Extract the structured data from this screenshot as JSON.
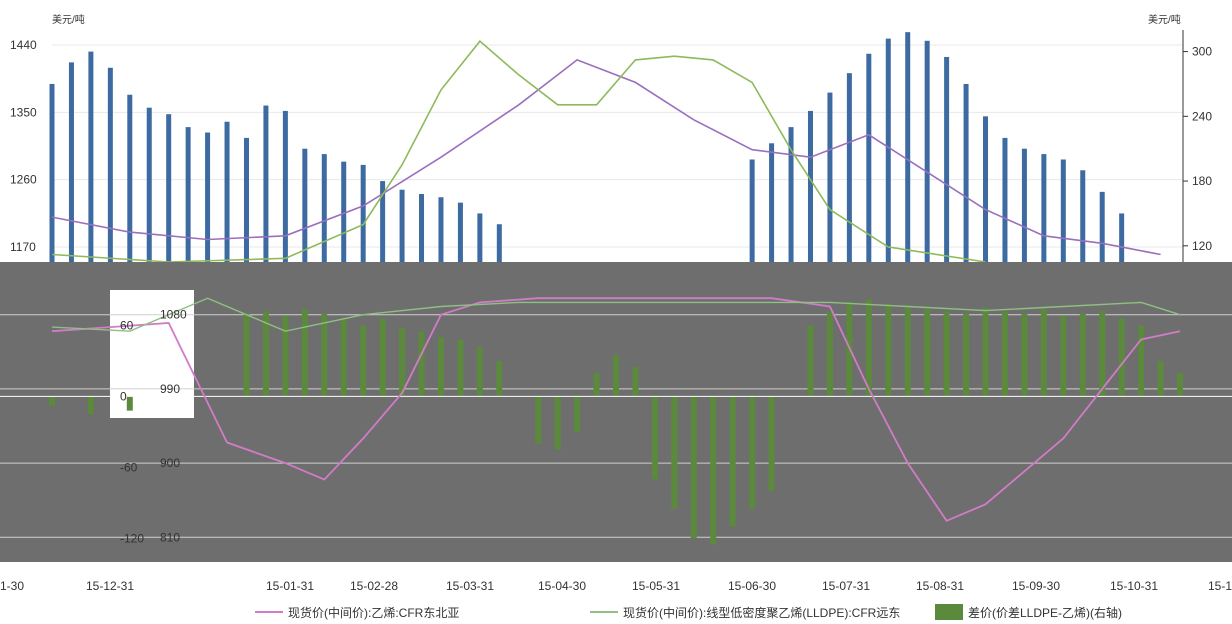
{
  "chart_data": [
    {
      "type": "bar+line",
      "panel": "top",
      "left_unit": "美元/吨",
      "right_unit": "美元/吨",
      "left_ticks": [
        "1440",
        "1350",
        "1260",
        "1170"
      ],
      "right_ticks": [
        "300",
        "240",
        "180",
        "120"
      ],
      "left_ylim": [
        1150,
        1460
      ],
      "right_ylim": [
        105,
        320
      ],
      "colors": {
        "bar": "#3d6aa0",
        "line_a": "#9a6fbf",
        "line_b": "#8dba5a"
      },
      "bars": [
        {
          "x": 0,
          "v": 270
        },
        {
          "x": 1,
          "v": 290
        },
        {
          "x": 2,
          "v": 300
        },
        {
          "x": 3,
          "v": 285
        },
        {
          "x": 4,
          "v": 260
        },
        {
          "x": 5,
          "v": 248
        },
        {
          "x": 6,
          "v": 242
        },
        {
          "x": 7,
          "v": 230
        },
        {
          "x": 8,
          "v": 225
        },
        {
          "x": 9,
          "v": 235
        },
        {
          "x": 10,
          "v": 220
        },
        {
          "x": 11,
          "v": 250
        },
        {
          "x": 12,
          "v": 245
        },
        {
          "x": 13,
          "v": 210
        },
        {
          "x": 14,
          "v": 205
        },
        {
          "x": 15,
          "v": 198
        },
        {
          "x": 16,
          "v": 195
        },
        {
          "x": 17,
          "v": 180
        },
        {
          "x": 18,
          "v": 172
        },
        {
          "x": 19,
          "v": 168
        },
        {
          "x": 20,
          "v": 165
        },
        {
          "x": 21,
          "v": 160
        },
        {
          "x": 22,
          "v": 150
        },
        {
          "x": 23,
          "v": 140
        },
        {
          "x": 36,
          "v": 200
        },
        {
          "x": 37,
          "v": 215
        },
        {
          "x": 38,
          "v": 230
        },
        {
          "x": 39,
          "v": 245
        },
        {
          "x": 40,
          "v": 262
        },
        {
          "x": 41,
          "v": 280
        },
        {
          "x": 42,
          "v": 298
        },
        {
          "x": 43,
          "v": 312
        },
        {
          "x": 44,
          "v": 318
        },
        {
          "x": 45,
          "v": 310
        },
        {
          "x": 46,
          "v": 295
        },
        {
          "x": 47,
          "v": 270
        },
        {
          "x": 48,
          "v": 240
        },
        {
          "x": 49,
          "v": 220
        },
        {
          "x": 50,
          "v": 210
        },
        {
          "x": 51,
          "v": 205
        },
        {
          "x": 52,
          "v": 200
        },
        {
          "x": 53,
          "v": 190
        },
        {
          "x": 54,
          "v": 170
        },
        {
          "x": 55,
          "v": 150
        }
      ],
      "line_a": [
        {
          "x": 0,
          "v": 1210
        },
        {
          "x": 4,
          "v": 1190
        },
        {
          "x": 8,
          "v": 1180
        },
        {
          "x": 12,
          "v": 1185
        },
        {
          "x": 16,
          "v": 1225
        },
        {
          "x": 20,
          "v": 1290
        },
        {
          "x": 24,
          "v": 1360
        },
        {
          "x": 27,
          "v": 1420
        },
        {
          "x": 30,
          "v": 1390
        },
        {
          "x": 33,
          "v": 1340
        },
        {
          "x": 36,
          "v": 1300
        },
        {
          "x": 39,
          "v": 1290
        },
        {
          "x": 42,
          "v": 1320
        },
        {
          "x": 45,
          "v": 1270
        },
        {
          "x": 48,
          "v": 1220
        },
        {
          "x": 51,
          "v": 1185
        },
        {
          "x": 54,
          "v": 1175
        },
        {
          "x": 57,
          "v": 1160
        }
      ],
      "line_b": [
        {
          "x": 0,
          "v": 1160
        },
        {
          "x": 6,
          "v": 1150
        },
        {
          "x": 12,
          "v": 1155
        },
        {
          "x": 16,
          "v": 1200
        },
        {
          "x": 18,
          "v": 1280
        },
        {
          "x": 20,
          "v": 1380
        },
        {
          "x": 22,
          "v": 1445
        },
        {
          "x": 24,
          "v": 1400
        },
        {
          "x": 26,
          "v": 1360
        },
        {
          "x": 28,
          "v": 1360
        },
        {
          "x": 30,
          "v": 1420
        },
        {
          "x": 32,
          "v": 1425
        },
        {
          "x": 34,
          "v": 1420
        },
        {
          "x": 36,
          "v": 1390
        },
        {
          "x": 38,
          "v": 1300
        },
        {
          "x": 40,
          "v": 1220
        },
        {
          "x": 43,
          "v": 1170
        },
        {
          "x": 48,
          "v": 1150
        }
      ]
    },
    {
      "type": "bar+line",
      "panel": "bottom",
      "left_ticks": [
        "60",
        "0",
        "-60",
        "-120"
      ],
      "right_ticks": [
        "1080",
        "990",
        "900",
        "810"
      ],
      "x_ticks": [
        "1-30",
        "15-12-31",
        "15-01-31",
        "15-02-28",
        "15-03-31",
        "15-04-30",
        "15-05-31",
        "15-06-30",
        "15-07-31",
        "15-08-31",
        "15-09-30",
        "15-10-31",
        "15-1"
      ],
      "left_ylim": [
        -140,
        90
      ],
      "right_ylim": [
        780,
        1110
      ],
      "colors": {
        "bar": "#5b8a3c",
        "line_a": "#d27bc8",
        "line_b": "#8fbf82"
      },
      "bars": [
        {
          "x": 0,
          "v": -8
        },
        {
          "x": 2,
          "v": -15
        },
        {
          "x": 4,
          "v": -12
        },
        {
          "x": 10,
          "v": 70
        },
        {
          "x": 11,
          "v": 72
        },
        {
          "x": 12,
          "v": 68
        },
        {
          "x": 13,
          "v": 74
        },
        {
          "x": 14,
          "v": 70
        },
        {
          "x": 15,
          "v": 65
        },
        {
          "x": 16,
          "v": 60
        },
        {
          "x": 17,
          "v": 66
        },
        {
          "x": 18,
          "v": 58
        },
        {
          "x": 19,
          "v": 55
        },
        {
          "x": 20,
          "v": 50
        },
        {
          "x": 21,
          "v": 48
        },
        {
          "x": 22,
          "v": 42
        },
        {
          "x": 23,
          "v": 30
        },
        {
          "x": 25,
          "v": -40
        },
        {
          "x": 26,
          "v": -45
        },
        {
          "x": 27,
          "v": -30
        },
        {
          "x": 28,
          "v": 20
        },
        {
          "x": 29,
          "v": 35
        },
        {
          "x": 30,
          "v": 25
        },
        {
          "x": 31,
          "v": -70
        },
        {
          "x": 32,
          "v": -95
        },
        {
          "x": 33,
          "v": -120
        },
        {
          "x": 34,
          "v": -125
        },
        {
          "x": 35,
          "v": -110
        },
        {
          "x": 36,
          "v": -95
        },
        {
          "x": 37,
          "v": -80
        },
        {
          "x": 39,
          "v": 60
        },
        {
          "x": 40,
          "v": 72
        },
        {
          "x": 41,
          "v": 80
        },
        {
          "x": 42,
          "v": 82
        },
        {
          "x": 43,
          "v": 78
        },
        {
          "x": 44,
          "v": 76
        },
        {
          "x": 45,
          "v": 74
        },
        {
          "x": 46,
          "v": 72
        },
        {
          "x": 47,
          "v": 70
        },
        {
          "x": 48,
          "v": 75
        },
        {
          "x": 49,
          "v": 72
        },
        {
          "x": 50,
          "v": 70
        },
        {
          "x": 51,
          "v": 74
        },
        {
          "x": 52,
          "v": 68
        },
        {
          "x": 53,
          "v": 70
        },
        {
          "x": 54,
          "v": 72
        },
        {
          "x": 55,
          "v": 66
        },
        {
          "x": 56,
          "v": 60
        },
        {
          "x": 57,
          "v": 30
        },
        {
          "x": 58,
          "v": 20
        }
      ],
      "line_a": [
        {
          "x": 0,
          "v": 1060
        },
        {
          "x": 3,
          "v": 1065
        },
        {
          "x": 6,
          "v": 1070
        },
        {
          "x": 9,
          "v": 925
        },
        {
          "x": 12,
          "v": 900
        },
        {
          "x": 14,
          "v": 880
        },
        {
          "x": 16,
          "v": 930
        },
        {
          "x": 18,
          "v": 985
        },
        {
          "x": 20,
          "v": 1080
        },
        {
          "x": 22,
          "v": 1095
        },
        {
          "x": 25,
          "v": 1100
        },
        {
          "x": 28,
          "v": 1100
        },
        {
          "x": 31,
          "v": 1100
        },
        {
          "x": 34,
          "v": 1100
        },
        {
          "x": 37,
          "v": 1100
        },
        {
          "x": 40,
          "v": 1090
        },
        {
          "x": 42,
          "v": 990
        },
        {
          "x": 44,
          "v": 900
        },
        {
          "x": 46,
          "v": 830
        },
        {
          "x": 48,
          "v": 850
        },
        {
          "x": 50,
          "v": 890
        },
        {
          "x": 52,
          "v": 930
        },
        {
          "x": 54,
          "v": 990
        },
        {
          "x": 56,
          "v": 1050
        },
        {
          "x": 58,
          "v": 1060
        }
      ],
      "line_b": [
        {
          "x": 0,
          "v": 1065
        },
        {
          "x": 4,
          "v": 1060
        },
        {
          "x": 8,
          "v": 1100
        },
        {
          "x": 12,
          "v": 1060
        },
        {
          "x": 16,
          "v": 1080
        },
        {
          "x": 20,
          "v": 1090
        },
        {
          "x": 24,
          "v": 1095
        },
        {
          "x": 40,
          "v": 1095
        },
        {
          "x": 44,
          "v": 1090
        },
        {
          "x": 48,
          "v": 1085
        },
        {
          "x": 52,
          "v": 1090
        },
        {
          "x": 56,
          "v": 1095
        },
        {
          "x": 58,
          "v": 1080
        }
      ]
    }
  ],
  "legend": {
    "items": [
      {
        "label": "现货价(中间价):乙烯:CFR东北亚",
        "kind": "line",
        "color": "#d27bc8"
      },
      {
        "label": "现货价(中间价):线型低密度聚乙烯(LLDPE):CFR远东",
        "kind": "line",
        "color": "#8fbf82"
      },
      {
        "label": "差价(价差LLDPE-乙烯)(右轴)",
        "kind": "bar",
        "color": "#5b8a3c"
      }
    ]
  }
}
